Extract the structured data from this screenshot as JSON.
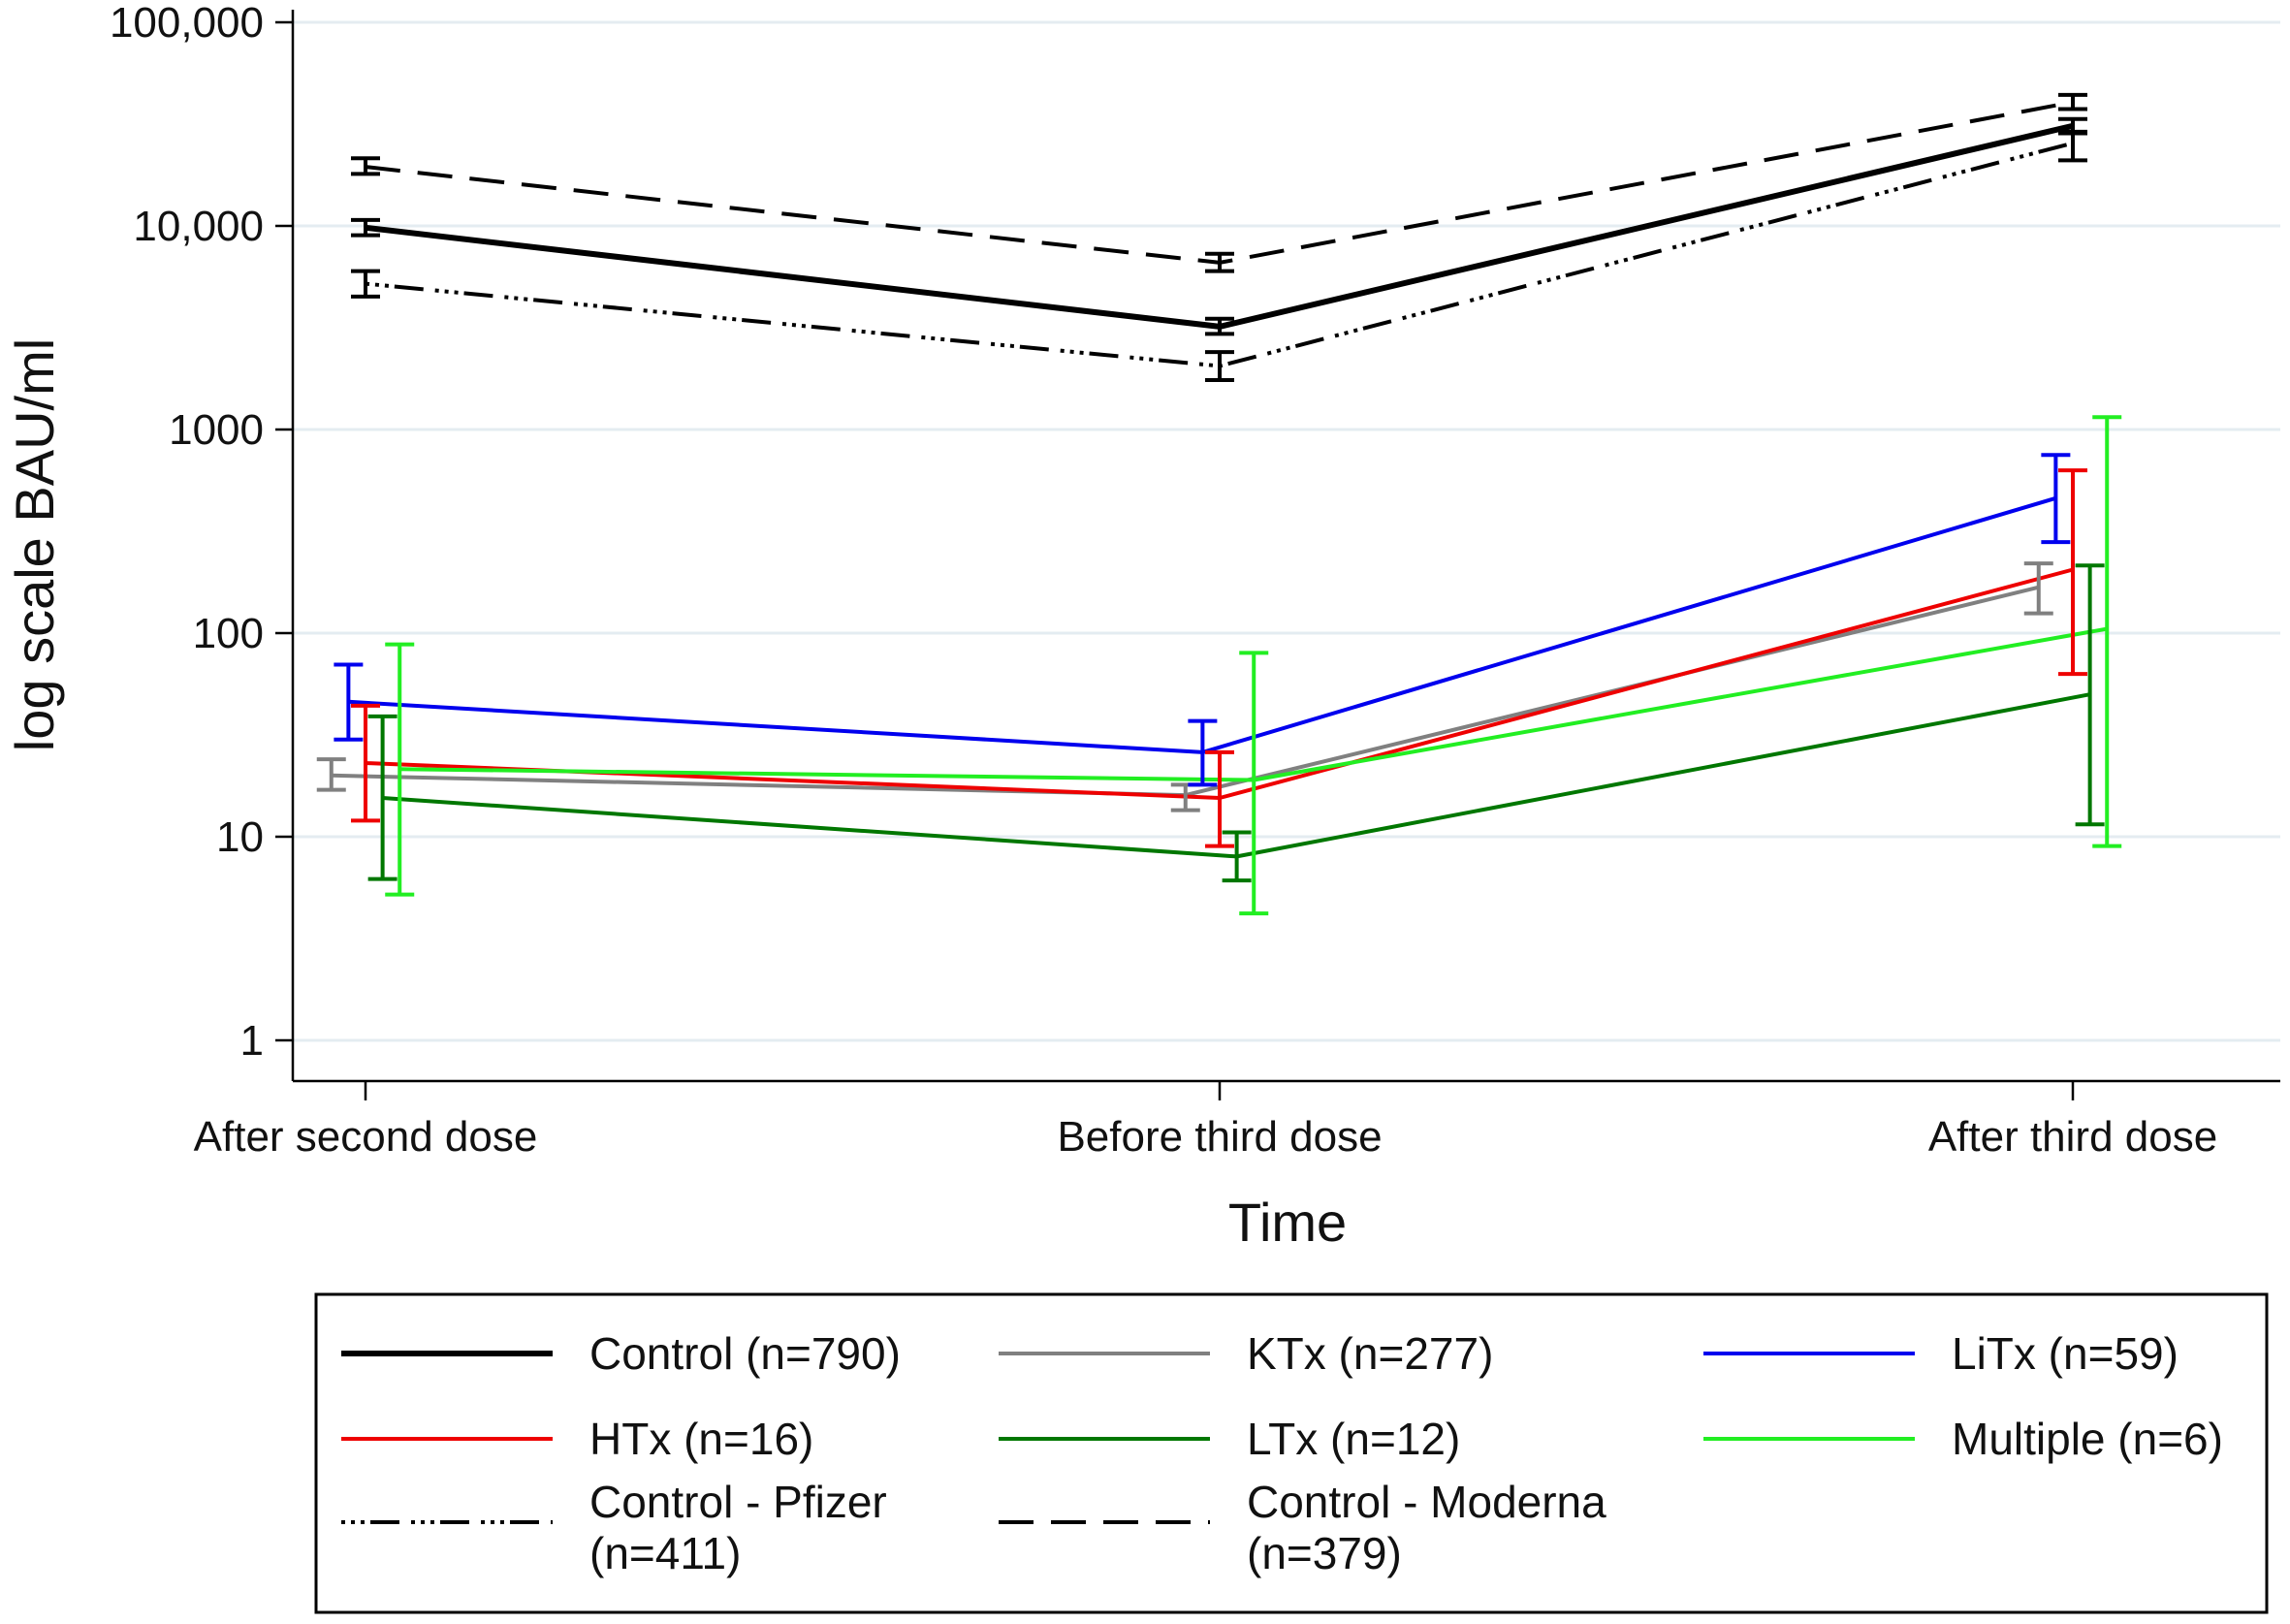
{
  "chart_data": {
    "type": "line",
    "title": "",
    "xlabel": "Time",
    "ylabel": "log scale BAU/ml",
    "yscale": "log",
    "ylim": [
      0.8,
      120000
    ],
    "grid": true,
    "legend_position": "bottom",
    "categories": [
      "After second dose",
      "Before third dose",
      "After third dose"
    ],
    "yticks": [
      {
        "value": 1,
        "label": "1"
      },
      {
        "value": 10,
        "label": "10"
      },
      {
        "value": 100,
        "label": "100"
      },
      {
        "value": 1000,
        "label": "1000"
      },
      {
        "value": 10000,
        "label": "10,000"
      },
      {
        "value": 100000,
        "label": "100,000"
      }
    ],
    "series": [
      {
        "name": "Control (n=790)",
        "color": "#000000",
        "dash": "solid",
        "width": "thick",
        "values": [
          9800,
          3200,
          31000
        ],
        "lower": [
          9000,
          2950,
          28500
        ],
        "upper": [
          10700,
          3500,
          33500
        ],
        "offsets": [
          0,
          0,
          0
        ]
      },
      {
        "name": "KTx (n=277)",
        "color": "#808080",
        "dash": "solid",
        "width": "normal",
        "values": [
          20,
          16,
          168
        ],
        "lower": [
          17,
          13.5,
          125
        ],
        "upper": [
          24,
          18,
          220
        ],
        "offsets": [
          -0.04,
          -0.04,
          -0.04
        ]
      },
      {
        "name": "LiTx (n=59)",
        "color": "#0000ee",
        "dash": "solid",
        "width": "normal",
        "values": [
          46,
          26,
          460
        ],
        "lower": [
          30,
          18,
          280
        ],
        "upper": [
          70,
          37,
          750
        ],
        "offsets": [
          -0.02,
          -0.02,
          -0.02
        ]
      },
      {
        "name": "HTx (n=16)",
        "color": "#ee0000",
        "dash": "solid",
        "width": "normal",
        "values": [
          23,
          15.5,
          205
        ],
        "lower": [
          12,
          9,
          63
        ],
        "upper": [
          44,
          26,
          630
        ],
        "offsets": [
          0,
          0,
          0
        ]
      },
      {
        "name": "LTx (n=12)",
        "color": "#007700",
        "dash": "solid",
        "width": "normal",
        "values": [
          15.5,
          8,
          50
        ],
        "lower": [
          6.2,
          6.1,
          11.5
        ],
        "upper": [
          39,
          10.5,
          215
        ],
        "offsets": [
          0.02,
          0.02,
          0.02
        ]
      },
      {
        "name": "Multiple (n=6)",
        "color": "#22ee22",
        "dash": "solid",
        "width": "normal",
        "values": [
          21.5,
          19,
          105
        ],
        "lower": [
          5.2,
          4.2,
          9
        ],
        "upper": [
          88,
          80,
          1150
        ],
        "offsets": [
          0.04,
          0.04,
          0.04
        ]
      },
      {
        "name": "Control - Pfizer",
        "name2": "(n=411)",
        "color": "#000000",
        "dash": "dashdot",
        "width": "normal",
        "values": [
          5200,
          2050,
          25500
        ],
        "lower": [
          4500,
          1750,
          21000
        ],
        "upper": [
          6000,
          2400,
          29000
        ],
        "offsets": [
          0,
          0,
          0
        ]
      },
      {
        "name": "Control - Moderna",
        "name2": "(n=379)",
        "color": "#000000",
        "dash": "dash",
        "width": "normal",
        "values": [
          19500,
          6600,
          40500
        ],
        "lower": [
          18000,
          6000,
          37500
        ],
        "upper": [
          21500,
          7300,
          44000
        ],
        "offsets": [
          0,
          0,
          0
        ]
      }
    ]
  }
}
